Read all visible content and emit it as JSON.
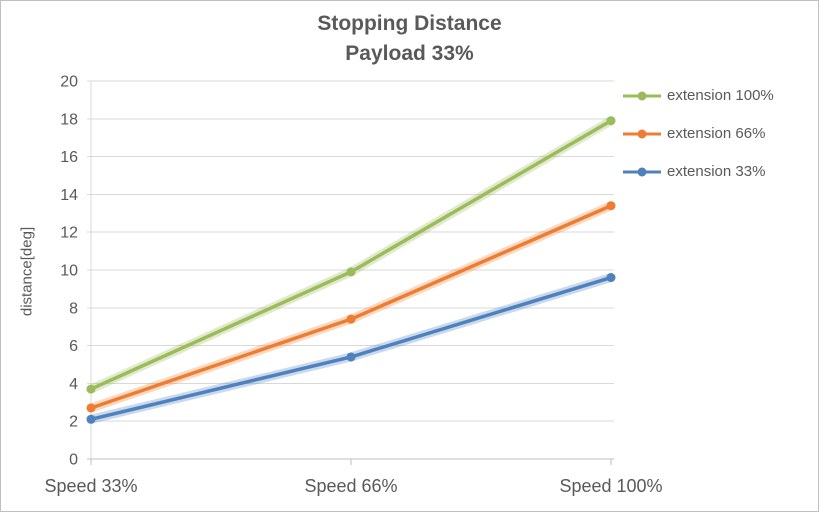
{
  "chart": {
    "title_line1": "Stopping Distance",
    "title_line2": "Payload 33%"
  },
  "chart_data": {
    "type": "line",
    "title": "Stopping Distance",
    "subtitle": "Payload 33%",
    "categories": [
      "Speed 33%",
      "Speed 66%",
      "Speed 100%"
    ],
    "series": [
      {
        "name": "extension 100%",
        "values": [
          3.7,
          9.9,
          17.9
        ],
        "color": "#9CBB5A"
      },
      {
        "name": "extension 66%",
        "values": [
          2.7,
          7.4,
          13.4
        ],
        "color": "#ED7D31"
      },
      {
        "name": "extension 33%",
        "values": [
          2.1,
          5.4,
          9.6
        ],
        "color": "#4E81BD"
      }
    ],
    "xlabel": "",
    "ylabel": "distance[deg]",
    "ylim": [
      0,
      20
    ],
    "ytick_step": 2,
    "grid": "horizontal",
    "legend_position": "right"
  },
  "colors": {
    "text": "#595959",
    "grid": "#D9D9D9",
    "axis": "#BFBFBF",
    "axis_light": "#D9D9D9"
  }
}
